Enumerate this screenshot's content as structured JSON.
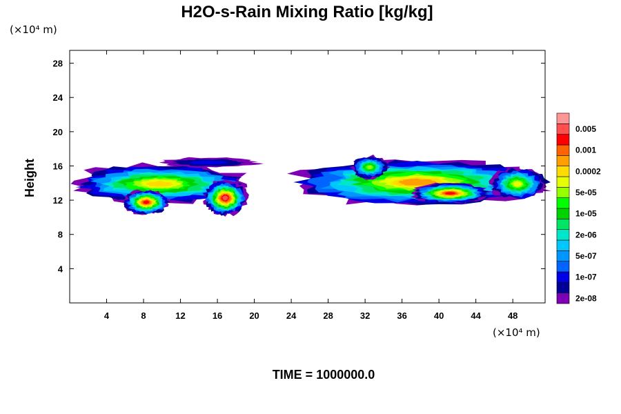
{
  "chart_data": {
    "type": "heatmap",
    "title": "H2O-s-Rain Mixing Ratio [kg/kg]",
    "ylabel": "Height",
    "x_unit": "(×10⁴ m)",
    "y_unit": "(×10⁴ m)",
    "x_ticks": [
      4,
      8,
      12,
      16,
      20,
      24,
      28,
      32,
      36,
      40,
      44,
      48
    ],
    "y_ticks": [
      4,
      8,
      12,
      16,
      20,
      24,
      28
    ],
    "xlim": [
      0,
      51.5
    ],
    "ylim": [
      0,
      29.5
    ],
    "footer": "TIME = 1000000.0",
    "legend_labels": [
      "2e-08",
      "1e-07",
      "5e-07",
      "2e-06",
      "1e-05",
      "5e-05",
      "0.0002",
      "0.001",
      "0.005"
    ],
    "level_colors": [
      "#7d00b4",
      "#000096",
      "#0000e6",
      "#0064ff",
      "#0096ff",
      "#00c8ff",
      "#00e6c8",
      "#00e664",
      "#00d200",
      "#00ff00",
      "#96ff00",
      "#e6ff00",
      "#ffdc00",
      "#ffa000",
      "#ff6400",
      "#ff0000",
      "#ff5050",
      "#ff9696"
    ],
    "regions": [
      {
        "x": [
          0,
          19.5
        ],
        "y": [
          11.6,
          16.2
        ],
        "peak": 0.0001
      },
      {
        "x": [
          5.8,
          10.8
        ],
        "y": [
          10.3,
          13.2
        ],
        "peak": 0.0015
      },
      {
        "x": [
          14.5,
          19.2
        ],
        "y": [
          10.2,
          14.3
        ],
        "peak": 0.0025
      },
      {
        "x": [
          9.5,
          20.5
        ],
        "y": [
          15.8,
          17.0
        ],
        "peak": 5e-08
      },
      {
        "x": [
          23.8,
          51.5
        ],
        "y": [
          11.4,
          16.8
        ],
        "peak": 0.0003
      },
      {
        "x": [
          37.0,
          45.5
        ],
        "y": [
          11.6,
          14.0
        ],
        "peak": 0.0012
      },
      {
        "x": [
          30.5,
          34.5
        ],
        "y": [
          14.5,
          17.2
        ],
        "peak": 2e-05
      },
      {
        "x": [
          45.5,
          51.5
        ],
        "y": [
          12.0,
          15.8
        ],
        "peak": 5e-05
      }
    ]
  }
}
